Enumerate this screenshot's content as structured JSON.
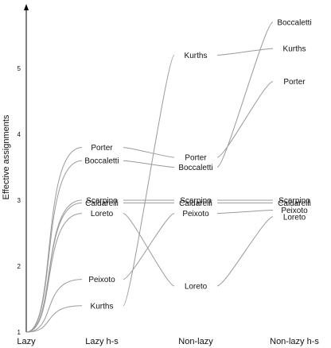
{
  "chart_data": {
    "type": "line",
    "ylabel": "Effective assignments",
    "xlabel": "",
    "stages": [
      "Lazy",
      "Lazy h-s",
      "Non-lazy",
      "Non-lazy h-s"
    ],
    "y_ticks": [
      1,
      2,
      3,
      4,
      5
    ],
    "ylim": [
      1,
      5.8
    ],
    "grid": false,
    "series": [
      {
        "name": "Porter",
        "values": [
          1,
          3.8,
          3.65,
          4.8
        ]
      },
      {
        "name": "Boccaletti",
        "values": [
          1,
          3.6,
          3.5,
          5.7
        ]
      },
      {
        "name": "Scarpino",
        "values": [
          1,
          3.0,
          3.0,
          3.0
        ]
      },
      {
        "name": "Caldarelli",
        "values": [
          1,
          2.96,
          2.96,
          2.96
        ]
      },
      {
        "name": "Loreto",
        "values": [
          1,
          2.8,
          1.7,
          2.75
        ]
      },
      {
        "name": "Peixoto",
        "values": [
          1,
          1.8,
          2.8,
          2.85
        ]
      },
      {
        "name": "Kurths",
        "values": [
          1,
          1.4,
          5.2,
          5.3
        ]
      }
    ]
  }
}
